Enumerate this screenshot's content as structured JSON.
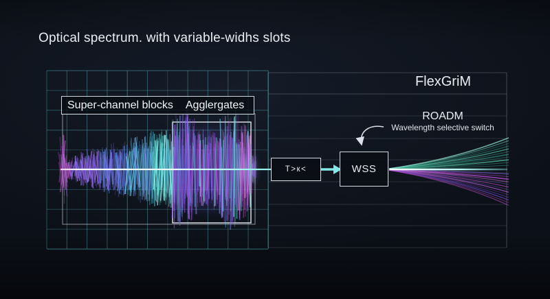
{
  "title": "Optical spectrum. with variable-widhs slots",
  "left_panel": {
    "label_left": "Super-channel blocks",
    "label_right": "Agglergates"
  },
  "right_panel": {
    "flexgrid_label": "FlexGriM",
    "roadm_label": "ROADM",
    "roadm_sublabel": "Wavelength selective switch"
  },
  "nodes": {
    "transponder_label": "T>к<",
    "wss_label": "WSS"
  },
  "colors": {
    "background": "#0c1018",
    "text": "#e9edf2",
    "grid_teal": "#60cdd2",
    "frame_gray": "#a5afbc",
    "box_border": "#d3dae1",
    "center_beam": "#eafffe",
    "beam_glow": "#7af0ea",
    "spectrum_magenta": "#d852e0",
    "spectrum_purple": "#8a5cec",
    "spectrum_blue": "#58aaf0",
    "spectrum_cyan": "#5fe9e6",
    "fan_teal": "#55c8a6",
    "fan_purple": "#a452dc",
    "connector_cyan": "#84e9e6",
    "arrow_gray": "#dbe0e6"
  }
}
